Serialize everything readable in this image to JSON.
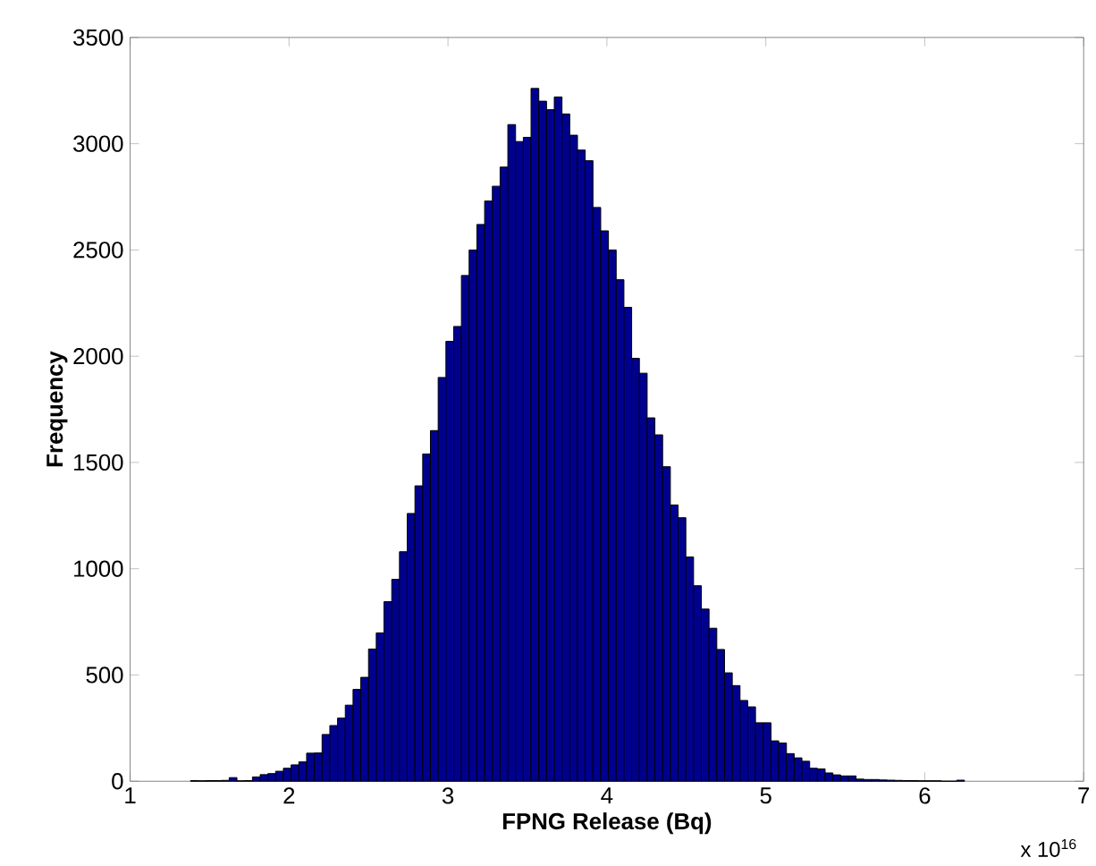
{
  "chart_data": {
    "type": "histogram",
    "xlabel": "FPNG Release (Bq)",
    "ylabel": "Frequency",
    "color": "#00008f",
    "annotations": [
      "x 10$^{16}$"
    ],
    "xlim": [
      1,
      7
    ],
    "xticks": [
      1,
      2,
      3,
      4,
      5,
      6,
      7
    ],
    "ylim": [
      0,
      3500
    ],
    "yticks": [
      0,
      500,
      1000,
      1500,
      2000,
      2500,
      3000,
      3500
    ],
    "bins": [
      1.38,
      1.4287,
      1.4774,
      1.5261,
      1.5748,
      1.6235,
      1.6722,
      1.7209,
      1.7696,
      1.8183,
      1.867,
      1.9157,
      1.9644,
      2.0131,
      2.0618,
      2.1105,
      2.1592,
      2.2079,
      2.2566,
      2.3053,
      2.354,
      2.4027,
      2.4514,
      2.5001,
      2.5488,
      2.5975,
      2.6462,
      2.6949,
      2.7436,
      2.7923,
      2.841,
      2.8897,
      2.9384,
      2.9871,
      3.0358,
      3.0845,
      3.1332,
      3.1819,
      3.2306,
      3.2793,
      3.328,
      3.3767,
      3.4254,
      3.4741,
      3.5228,
      3.5715,
      3.6202,
      3.6689,
      3.7176,
      3.7663,
      3.815,
      3.8637,
      3.9124,
      3.9611,
      4.0098,
      4.0585,
      4.1072,
      4.1559,
      4.2046,
      4.2533,
      4.302,
      4.3507,
      4.3994,
      4.4481,
      4.4968,
      4.5455,
      4.5942,
      4.6429,
      4.6916,
      4.7403,
      4.789,
      4.8377,
      4.8864,
      4.9351,
      4.9838,
      5.0325,
      5.0812,
      5.1299,
      5.1786,
      5.2273,
      5.276,
      5.3247,
      5.3734,
      5.4221,
      5.4708,
      5.5195,
      5.5682,
      5.6169,
      5.6656,
      5.7143,
      5.763,
      5.8117,
      5.8604,
      5.9091,
      5.9578,
      6.0065,
      6.0552,
      6.1039,
      6.1526,
      6.2013,
      6.25
    ],
    "values": [
      3,
      2,
      3,
      3,
      4,
      17,
      2,
      3,
      20,
      31,
      36,
      47,
      61,
      77,
      91,
      132,
      133,
      220,
      262,
      297,
      358,
      432,
      489,
      622,
      698,
      845,
      950,
      1080,
      1260,
      1390,
      1540,
      1650,
      1900,
      2070,
      2140,
      2380,
      2500,
      2620,
      2730,
      2800,
      2890,
      3090,
      3010,
      3030,
      3260,
      3200,
      3160,
      3220,
      3140,
      3040,
      2970,
      2920,
      2700,
      2590,
      2500,
      2360,
      2230,
      1990,
      1920,
      1710,
      1630,
      1480,
      1300,
      1240,
      1055,
      920,
      810,
      720,
      620,
      510,
      450,
      380,
      350,
      275,
      275,
      190,
      180,
      130,
      110,
      94,
      61,
      58,
      39,
      30,
      25,
      25,
      10,
      8,
      8,
      6,
      5,
      4,
      3,
      3,
      2,
      2,
      2,
      0,
      0,
      5
    ]
  }
}
